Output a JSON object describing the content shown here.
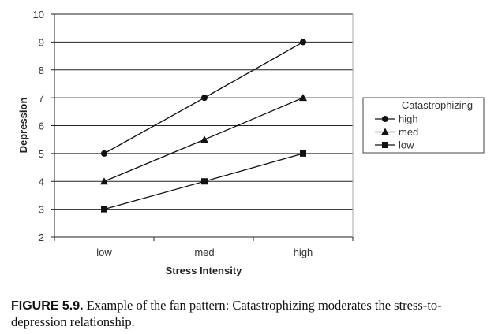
{
  "chart_data": {
    "type": "line",
    "title": "",
    "xlabel": "Stress Intensity",
    "ylabel": "Depression",
    "categories": [
      "low",
      "med",
      "high"
    ],
    "ylim": [
      2,
      10
    ],
    "yticks": [
      2,
      3,
      4,
      5,
      6,
      7,
      8,
      9,
      10
    ],
    "grid": "horizontal",
    "legend": {
      "title": "Catastrophizing",
      "placement": "right"
    },
    "series": [
      {
        "name": "high",
        "marker": "circle",
        "values": [
          5,
          7,
          9
        ]
      },
      {
        "name": "med",
        "marker": "triangle",
        "values": [
          4,
          5.5,
          7
        ]
      },
      {
        "name": "low",
        "marker": "square",
        "values": [
          3,
          4,
          5
        ]
      }
    ]
  },
  "caption": {
    "label": "FIGURE 5.9.",
    "text": "Example of the fan pattern: Catastrophizing moderates the stress-to-depression relationship."
  }
}
